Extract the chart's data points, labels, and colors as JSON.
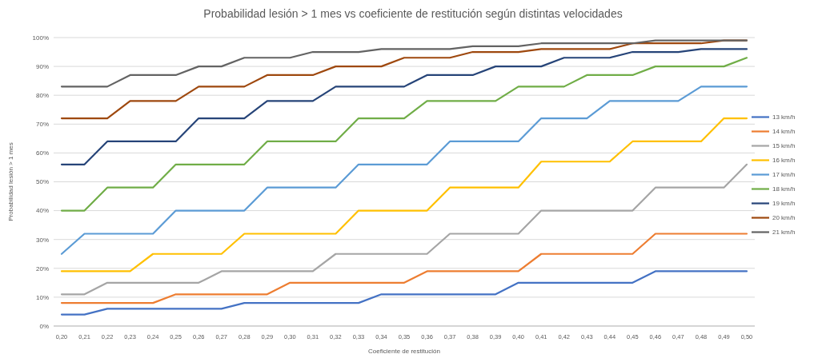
{
  "chart_data": {
    "type": "line",
    "title": "Probabilidad lesión > 1 mes vs coeficiente de restitución según distintas velocidades",
    "xlabel": "Coeficiente de restitución",
    "ylabel": "Probabilidad lesión > 1 mes",
    "categories": [
      "0,20",
      "0,21",
      "0,22",
      "0,23",
      "0,24",
      "0,25",
      "0,26",
      "0,27",
      "0,28",
      "0,29",
      "0,30",
      "0,31",
      "0,32",
      "0,33",
      "0,34",
      "0,35",
      "0,36",
      "0,37",
      "0,38",
      "0,39",
      "0,40",
      "0,41",
      "0,42",
      "0,43",
      "0,44",
      "0,45",
      "0,46",
      "0,47",
      "0,48",
      "0,49",
      "0,50"
    ],
    "ylim": [
      0,
      100
    ],
    "yticks": [
      {
        "value": 0,
        "label": "0%"
      },
      {
        "value": 10,
        "label": "10%"
      },
      {
        "value": 20,
        "label": "20%"
      },
      {
        "value": 30,
        "label": "30%"
      },
      {
        "value": 40,
        "label": "40%"
      },
      {
        "value": 50,
        "label": "50%"
      },
      {
        "value": 60,
        "label": "60%"
      },
      {
        "value": 70,
        "label": "70%"
      },
      {
        "value": 80,
        "label": "80%"
      },
      {
        "value": 90,
        "label": "90%"
      },
      {
        "value": 100,
        "label": "100%"
      }
    ],
    "grid": "y",
    "legend": "right",
    "marker": "none",
    "line_style": "solid",
    "series": [
      {
        "name": "13 km/h",
        "color": "#4472c4",
        "values": [
          4,
          4,
          6,
          6,
          6,
          6,
          6,
          6,
          8,
          8,
          8,
          8,
          8,
          8,
          11,
          11,
          11,
          11,
          11,
          11,
          15,
          15,
          15,
          15,
          15,
          15,
          19,
          19,
          19,
          19,
          19
        ]
      },
      {
        "name": "14 km/h",
        "color": "#ed7d31",
        "values": [
          8,
          8,
          8,
          8,
          8,
          11,
          11,
          11,
          11,
          11,
          15,
          15,
          15,
          15,
          15,
          15,
          19,
          19,
          19,
          19,
          19,
          25,
          25,
          25,
          25,
          25,
          32,
          32,
          32,
          32,
          32
        ]
      },
      {
        "name": "15 km/h",
        "color": "#a5a5a5",
        "values": [
          11,
          11,
          15,
          15,
          15,
          15,
          15,
          19,
          19,
          19,
          19,
          19,
          25,
          25,
          25,
          25,
          25,
          32,
          32,
          32,
          32,
          40,
          40,
          40,
          40,
          40,
          48,
          48,
          48,
          48,
          56
        ]
      },
      {
        "name": "16 km/h",
        "color": "#ffc000",
        "values": [
          19,
          19,
          19,
          19,
          25,
          25,
          25,
          25,
          32,
          32,
          32,
          32,
          32,
          40,
          40,
          40,
          40,
          48,
          48,
          48,
          48,
          57,
          57,
          57,
          57,
          64,
          64,
          64,
          64,
          72,
          72
        ]
      },
      {
        "name": "17 km/h",
        "color": "#5b9bd5",
        "values": [
          25,
          32,
          32,
          32,
          32,
          40,
          40,
          40,
          40,
          48,
          48,
          48,
          48,
          56,
          56,
          56,
          56,
          64,
          64,
          64,
          64,
          72,
          72,
          72,
          78,
          78,
          78,
          78,
          83,
          83,
          83
        ]
      },
      {
        "name": "18 km/h",
        "color": "#70ad47",
        "values": [
          40,
          40,
          48,
          48,
          48,
          56,
          56,
          56,
          56,
          64,
          64,
          64,
          64,
          72,
          72,
          72,
          78,
          78,
          78,
          78,
          83,
          83,
          83,
          87,
          87,
          87,
          90,
          90,
          90,
          90,
          93
        ]
      },
      {
        "name": "19 km/h",
        "color": "#264478",
        "values": [
          56,
          56,
          64,
          64,
          64,
          64,
          72,
          72,
          72,
          78,
          78,
          78,
          83,
          83,
          83,
          83,
          87,
          87,
          87,
          90,
          90,
          90,
          93,
          93,
          93,
          95,
          95,
          95,
          96,
          96,
          96
        ]
      },
      {
        "name": "20 km/h",
        "color": "#9e480e",
        "values": [
          72,
          72,
          72,
          78,
          78,
          78,
          83,
          83,
          83,
          87,
          87,
          87,
          90,
          90,
          90,
          93,
          93,
          93,
          95,
          95,
          95,
          96,
          96,
          96,
          96,
          98,
          98,
          98,
          98,
          99,
          99
        ]
      },
      {
        "name": "21 km/h",
        "color": "#636363",
        "values": [
          83,
          83,
          83,
          87,
          87,
          87,
          90,
          90,
          93,
          93,
          93,
          95,
          95,
          95,
          96,
          96,
          96,
          96,
          97,
          97,
          97,
          98,
          98,
          98,
          98,
          98,
          99,
          99,
          99,
          99,
          99
        ]
      }
    ]
  }
}
